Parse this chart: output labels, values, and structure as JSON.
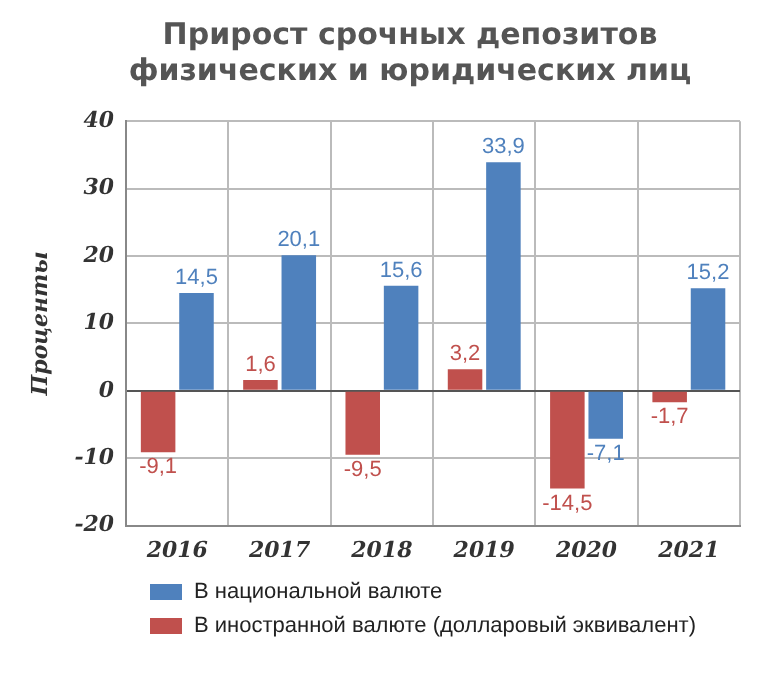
{
  "chart_data": {
    "type": "bar",
    "title": "Прирост срочных депозитов физических и юридических лиц",
    "ylabel": "Проценты",
    "categories": [
      "2016",
      "2017",
      "2018",
      "2019",
      "2020",
      "2021"
    ],
    "series": [
      {
        "name": "В национальной валюте",
        "color": "#4f81bd",
        "values": [
          14.5,
          20.1,
          15.6,
          33.9,
          -7.1,
          15.2
        ],
        "value_labels": [
          "14,5",
          "20,1",
          "15,6",
          "33,9",
          "-7,1",
          "15,2"
        ]
      },
      {
        "name": "В иностранной валюте (долларовый эквивалент)",
        "color": "#c0504d",
        "values": [
          -9.1,
          1.6,
          -9.5,
          3.2,
          -14.5,
          -1.7
        ],
        "value_labels": [
          "-9,1",
          "1,6",
          "-9,5",
          "3,2",
          "-14,5",
          "-1,7"
        ]
      }
    ],
    "ylim": [
      -20,
      40
    ],
    "yticks": [
      -20,
      -10,
      0,
      10,
      20,
      30,
      40
    ],
    "grid": true,
    "legend": "bottom"
  }
}
